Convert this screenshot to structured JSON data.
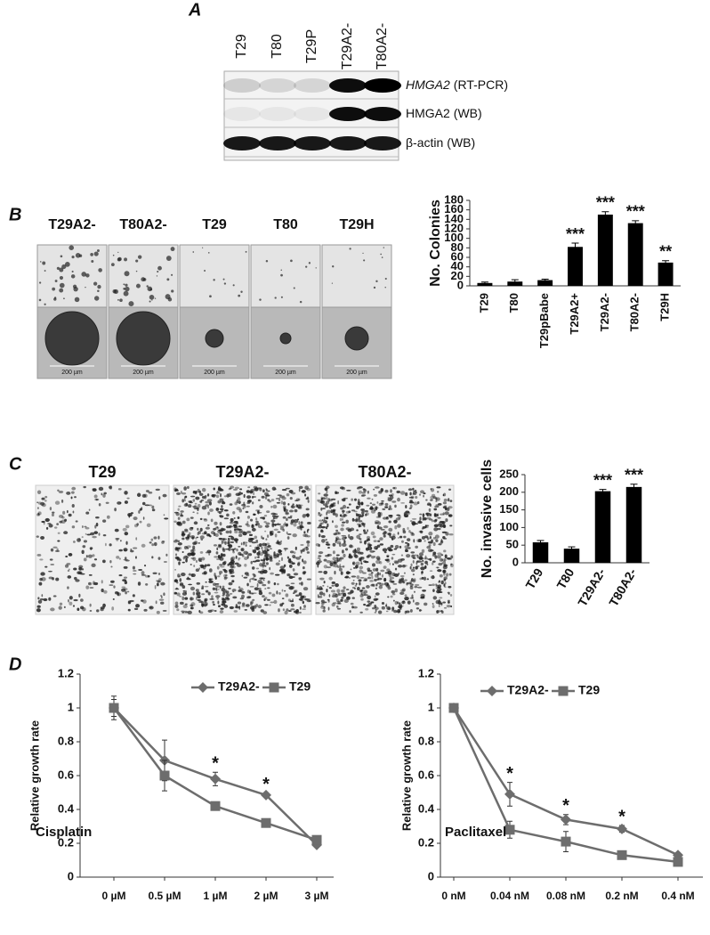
{
  "panel_a": {
    "label": "A",
    "lanes": [
      "T29",
      "T80",
      "T29P",
      "T29A2-",
      "T80A2-"
    ],
    "rows": [
      {
        "name": "HMGA2",
        "method": "(RT-PCR)",
        "italic": true
      },
      {
        "name": "HMGA2",
        "method": "(WB)",
        "italic": false
      },
      {
        "name": "β-actin",
        "method": "(WB)",
        "italic": false
      }
    ]
  },
  "panel_b": {
    "label": "B",
    "samples": [
      "T29A2-",
      "T80A2-",
      "T29",
      "T80",
      "T29H"
    ],
    "scale_bars": [
      "200 µm",
      "200 µm",
      "200 µm",
      "200 µm",
      "200 µm"
    ]
  },
  "panel_c": {
    "label": "C",
    "samples": [
      "T29",
      "T29A2-",
      "T80A2-"
    ]
  },
  "panel_d": {
    "label": "D"
  },
  "chart_data": [
    {
      "type": "bar",
      "ylabel": "No. Colonies",
      "categories": [
        "T29",
        "T80",
        "T29pBabe",
        "T29A2+",
        "T29A2-",
        "T80A2-",
        "T29H"
      ],
      "values": [
        6,
        9,
        12,
        82,
        150,
        132,
        49
      ],
      "errors": [
        2,
        4,
        2,
        8,
        6,
        5,
        4
      ],
      "significance": [
        null,
        null,
        null,
        "***",
        "***",
        "***",
        "**"
      ],
      "color": "#000000",
      "ylim": [
        0,
        180
      ],
      "yticks": [
        0,
        20,
        40,
        60,
        80,
        100,
        120,
        140,
        160,
        180
      ]
    },
    {
      "type": "bar",
      "ylabel": "No. invasive cells",
      "categories": [
        "T29",
        "T80",
        "T29A2-",
        "T80A2-"
      ],
      "values": [
        58,
        40,
        203,
        215
      ],
      "errors": [
        5,
        5,
        5,
        8
      ],
      "significance": [
        null,
        null,
        "***",
        "***"
      ],
      "color": "#000000",
      "ylim": [
        0,
        250
      ],
      "yticks": [
        0,
        50,
        100,
        150,
        200,
        250
      ]
    },
    {
      "type": "line",
      "ylabel": "Relative growth rate",
      "annotation": "Cisplatin",
      "categories": [
        "0 µM",
        "0.5 µM",
        "1 µM",
        "2 µM",
        "3 µM"
      ],
      "series": [
        {
          "name": "T29A2-",
          "color": "#6d6d6d",
          "marker": "diamond",
          "values": [
            1,
            0.69,
            0.58,
            0.485,
            0.19
          ],
          "errors": [
            0.05,
            0.12,
            0.04,
            0.01,
            0.01
          ]
        },
        {
          "name": "T29",
          "color": "#6d6d6d",
          "marker": "square",
          "values": [
            1,
            0.6,
            0.42,
            0.32,
            0.22
          ],
          "errors": [
            0.07,
            0.09,
            0.02,
            0.02,
            0.02
          ]
        }
      ],
      "significance": [
        null,
        null,
        "*",
        "*",
        null
      ],
      "ylim": [
        0,
        1.2
      ],
      "yticks": [
        0,
        0.2,
        0.4,
        0.6,
        0.8,
        1,
        1.2
      ],
      "legend": "top"
    },
    {
      "type": "line",
      "ylabel": "Relative growth rate",
      "annotation": "Paclitaxel",
      "categories": [
        "0 nM",
        "0.04 nM",
        "0.08 nM",
        "0.2 nM",
        "0.4 nM"
      ],
      "series": [
        {
          "name": "T29A2-",
          "color": "#6d6d6d",
          "marker": "diamond",
          "values": [
            1,
            0.49,
            0.34,
            0.285,
            0.13
          ],
          "errors": [
            0,
            0.07,
            0.03,
            0.02,
            0.01
          ]
        },
        {
          "name": "T29",
          "color": "#6d6d6d",
          "marker": "square",
          "values": [
            1,
            0.28,
            0.21,
            0.13,
            0.09
          ],
          "errors": [
            0,
            0.05,
            0.06,
            0.01,
            0.01
          ]
        }
      ],
      "significance": [
        null,
        "*",
        "*",
        "*",
        null
      ],
      "ylim": [
        0,
        1.2
      ],
      "yticks": [
        0,
        0.2,
        0.4,
        0.6,
        0.8,
        1,
        1.2
      ],
      "legend": "top"
    }
  ]
}
